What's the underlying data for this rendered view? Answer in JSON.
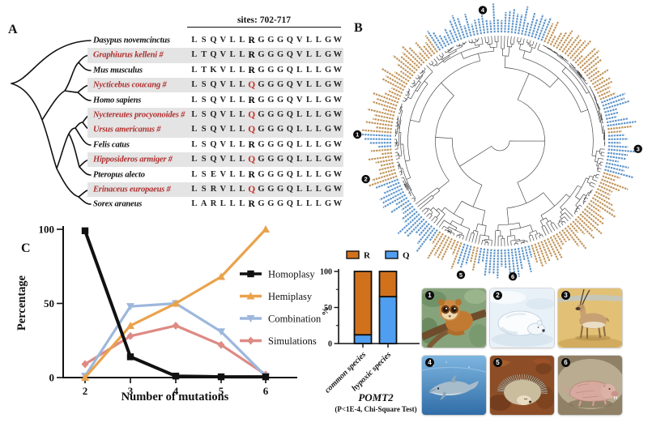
{
  "panel_a": {
    "label": "A",
    "sites_header": "sites: 702-717",
    "key_site_index": 6,
    "colors": {
      "marked_name": "#b02e2e",
      "key_q": "#c0332b",
      "band": "#e4e4e4"
    },
    "alignment": [
      {
        "species": "Dasypus novemcinctus",
        "marked": false,
        "sequence": "LSQVLLRGGGQVLLGW"
      },
      {
        "species": "Graphiurus kelleni #",
        "marked": true,
        "sequence": "LTQVLLRGGGQVLLGW"
      },
      {
        "species": "Mus musculus",
        "marked": false,
        "sequence": "LTKVLLRGGGQLLLGW"
      },
      {
        "species": "Nycticebus coucang #",
        "marked": true,
        "sequence": "LSQVLLQGGGQVLLGW"
      },
      {
        "species": "Homo sapiens",
        "marked": false,
        "sequence": "LSQVLLRGGGQVLLGW"
      },
      {
        "species": "Nyctereutes procyonoides #",
        "marked": true,
        "sequence": "LSQVLLQGGGQLLLGW"
      },
      {
        "species": "Ursus americanus #",
        "marked": true,
        "sequence": "LSQVLLQGGGQLLLGW"
      },
      {
        "species": "Felis catus",
        "marked": false,
        "sequence": "LSQVLLRGGGQLLLGW"
      },
      {
        "species": "Hipposideros armiger #",
        "marked": true,
        "sequence": "LSQVLLQGGGQLLLGW"
      },
      {
        "species": "Pteropus alecto",
        "marked": false,
        "sequence": "LSEVLLRGGGQLLLGW"
      },
      {
        "species": "Erinaceus europaeus #",
        "marked": true,
        "sequence": "LSRVLLQGGGQLLLGW"
      },
      {
        "species": "Sorex araneus",
        "marked": false,
        "sequence": "LARLLLRGGGQLLLGW"
      }
    ]
  },
  "panel_b": {
    "label": "B",
    "leaf_count": 200,
    "seed": 11,
    "colors": {
      "common_leaf": "#bf9257",
      "hypoxic_leaf": "#5b93c9",
      "branch": "#3f3f3f"
    },
    "hypoxic_angle_ranges": [
      [
        326,
        383
      ],
      [
        69,
        82
      ],
      [
        86,
        106
      ],
      [
        163,
        191
      ],
      [
        195,
        200
      ],
      [
        214,
        250
      ],
      [
        267,
        274
      ]
    ],
    "markers": [
      {
        "number": "1",
        "angle": 272.6,
        "radius": 176
      },
      {
        "number": "2",
        "angle": 254.1,
        "radius": 172
      },
      {
        "number": "3",
        "angle": 93.3,
        "radius": 171
      },
      {
        "number": "4",
        "angle": 352.6,
        "radius": 163
      },
      {
        "number": "5",
        "angle": 196.2,
        "radius": 172
      },
      {
        "number": "6",
        "angle": 174.5,
        "radius": 168
      }
    ]
  },
  "panel_c": {
    "label": "C"
  },
  "chart_data": [
    {
      "type": "line",
      "title": "",
      "xlabel": "Number of mutations",
      "ylabel": "Percentage",
      "x": [
        2,
        3,
        4,
        5,
        6
      ],
      "ylim": [
        0,
        100
      ],
      "yticks": [
        0,
        50,
        100
      ],
      "grid": false,
      "legend_position": "right",
      "series": [
        {
          "name": "Homoplasy",
          "color": "#111111",
          "marker": "square",
          "values": [
            99,
            14,
            1,
            0.5,
            0.5
          ]
        },
        {
          "name": "Hemiplasy",
          "color": "#e9a34c",
          "marker": "triangle-up",
          "values": [
            0,
            35,
            50,
            68,
            100
          ]
        },
        {
          "name": "Combination",
          "color": "#9db7dd",
          "marker": "triangle-down",
          "values": [
            1,
            48,
            50,
            31,
            1
          ]
        },
        {
          "name": "Simulations",
          "color": "#de8a84",
          "marker": "diamond",
          "values": [
            9,
            28,
            35,
            22,
            2
          ]
        }
      ]
    },
    {
      "type": "bar",
      "subtype": "stacked",
      "categories": [
        "common species",
        "hypoxic species"
      ],
      "series": [
        {
          "name": "R",
          "color": "#d2711c",
          "values": [
            88,
            35
          ]
        },
        {
          "name": "Q",
          "color": "#4f9ef0",
          "values": [
            12,
            65
          ]
        }
      ],
      "ylabel": "%",
      "ylim": [
        0,
        100
      ],
      "yticks": [
        0,
        50,
        100
      ],
      "minor_yticks": [
        25,
        75
      ],
      "legend_position": "top",
      "title": "POMT2",
      "subtitle": "(P<1E-4, Chi-Square Test)"
    }
  ],
  "animals": [
    {
      "number": "1",
      "illustration": "slow-loris"
    },
    {
      "number": "2",
      "illustration": "polar-bear"
    },
    {
      "number": "3",
      "illustration": "tibetan-antelope"
    },
    {
      "number": "4",
      "illustration": "dolphin"
    },
    {
      "number": "5",
      "illustration": "hedgehog"
    },
    {
      "number": "6",
      "illustration": "naked-mole-rat"
    }
  ]
}
